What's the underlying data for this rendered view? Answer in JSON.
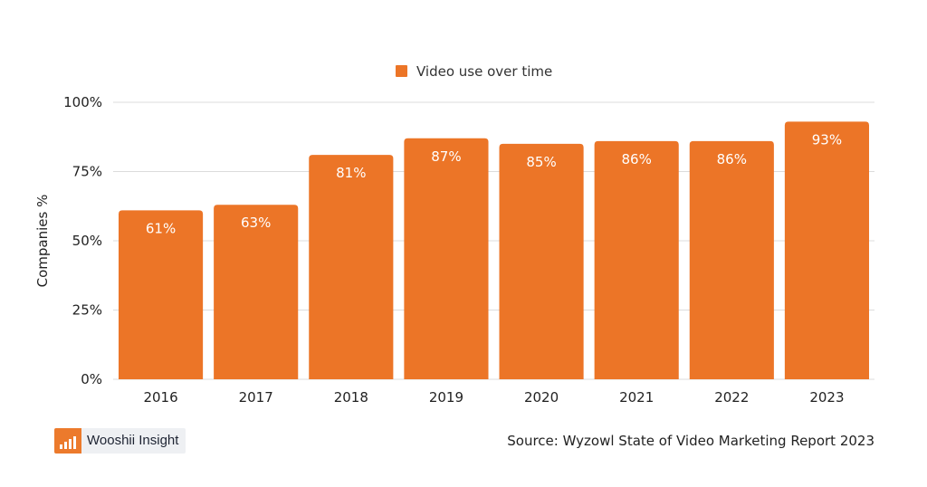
{
  "chart_data": {
    "type": "bar",
    "categories": [
      "2016",
      "2017",
      "2018",
      "2019",
      "2020",
      "2021",
      "2022",
      "2023"
    ],
    "series": [
      {
        "name": "Video use over time",
        "values": [
          61,
          63,
          81,
          87,
          85,
          86,
          86,
          93
        ]
      }
    ],
    "data_labels": [
      "61%",
      "63%",
      "81%",
      "87%",
      "85%",
      "86%",
      "86%",
      "93%"
    ],
    "ylabel": "Companies %",
    "xlabel": "",
    "ylim": [
      0,
      100
    ],
    "yticks": [
      0,
      25,
      50,
      75,
      100
    ],
    "ytick_labels": [
      "0%",
      "25%",
      "50%",
      "75%",
      "100%"
    ],
    "grid": true,
    "legend_position": "top-center",
    "color": "#ec7527"
  },
  "branding": {
    "name": "Wooshii Insight"
  },
  "source": "Source: Wyzowl State of Video Marketing Report 2023"
}
